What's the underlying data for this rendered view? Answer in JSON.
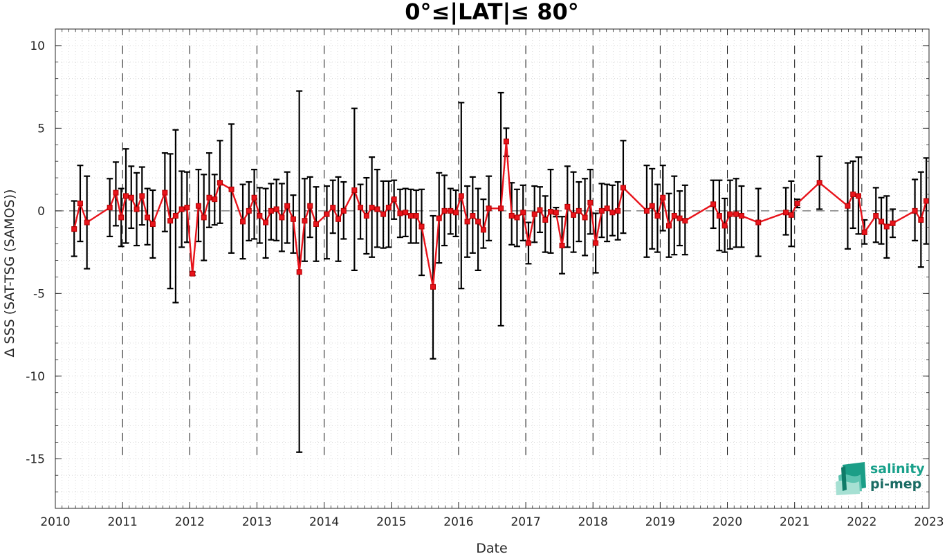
{
  "chart_data": {
    "type": "line",
    "title": "0°≤|LAT|≤ 80°",
    "xlabel": "Date",
    "ylabel": "Δ SSS (SAT-TSG (SAMOS))",
    "xlim": [
      2010,
      2023
    ],
    "ylim": [
      -18,
      11
    ],
    "x_tick_labels": [
      "2010",
      "2011",
      "2012",
      "2013",
      "2014",
      "2015",
      "2016",
      "2017",
      "2018",
      "2019",
      "2020",
      "2021",
      "2022",
      "2023"
    ],
    "y_tick_labels": [
      "-15",
      "-10",
      "-5",
      "0",
      "5",
      "10"
    ],
    "y_tick_values": [
      -15,
      -10,
      -5,
      0,
      5,
      10
    ],
    "year_dividers": [
      2011,
      2012,
      2013,
      2014,
      2015,
      2016,
      2017,
      2018,
      2019,
      2020,
      2021,
      2022
    ],
    "zero_line": 0,
    "grid": "minor-dotted",
    "colors": {
      "series": "#e8131b",
      "errorbar": "#000000",
      "logo": "#18a08a"
    },
    "series": [
      {
        "marker": "square",
        "x": [
          2010.28,
          2010.37,
          2010.47,
          2010.81,
          2010.9,
          2010.98,
          2011.05,
          2011.13,
          2011.21,
          2011.29,
          2011.37,
          2011.45,
          2011.63,
          2011.71,
          2011.79,
          2011.88,
          2011.96,
          2012.04,
          2012.13,
          2012.21,
          2012.29,
          2012.37,
          2012.45,
          2012.62,
          2012.79,
          2012.88,
          2012.96,
          2013.04,
          2013.13,
          2013.21,
          2013.29,
          2013.37,
          2013.45,
          2013.54,
          2013.63,
          2013.71,
          2013.79,
          2013.88,
          2014.04,
          2014.13,
          2014.21,
          2014.29,
          2014.45,
          2014.54,
          2014.63,
          2014.71,
          2014.79,
          2014.88,
          2014.96,
          2015.04,
          2015.13,
          2015.21,
          2015.29,
          2015.37,
          2015.45,
          2015.62,
          2015.71,
          2015.79,
          2015.88,
          2015.96,
          2016.04,
          2016.13,
          2016.21,
          2016.29,
          2016.37,
          2016.45,
          2016.63,
          2016.71,
          2016.79,
          2016.87,
          2016.96,
          2017.04,
          2017.13,
          2017.21,
          2017.29,
          2017.37,
          2017.45,
          2017.54,
          2017.62,
          2017.71,
          2017.79,
          2017.88,
          2017.96,
          2018.04,
          2018.13,
          2018.21,
          2018.29,
          2018.37,
          2018.45,
          2018.8,
          2018.88,
          2018.96,
          2019.04,
          2019.13,
          2019.21,
          2019.29,
          2019.37,
          2019.79,
          2019.88,
          2019.96,
          2020.04,
          2020.13,
          2020.21,
          2020.46,
          2020.87,
          2020.95,
          2021.04,
          2021.37,
          2021.79,
          2021.87,
          2021.95,
          2022.04,
          2022.21,
          2022.29,
          2022.37,
          2022.46,
          2022.79,
          2022.88,
          2022.96
        ],
        "y": [
          -1.1,
          0.45,
          -0.7,
          0.2,
          1.1,
          -0.4,
          0.9,
          0.8,
          0.1,
          0.9,
          -0.4,
          -0.8,
          1.1,
          -0.6,
          -0.3,
          0.1,
          0.2,
          -3.8,
          0.3,
          -0.4,
          0.8,
          0.7,
          1.7,
          1.3,
          -0.65,
          0.0,
          0.8,
          -0.3,
          -0.7,
          0.0,
          0.1,
          -0.4,
          0.3,
          -0.5,
          -3.7,
          -0.6,
          0.3,
          -0.8,
          -0.2,
          0.2,
          -0.5,
          0.0,
          1.25,
          0.2,
          -0.3,
          0.2,
          0.1,
          -0.2,
          0.2,
          0.7,
          -0.15,
          -0.1,
          -0.3,
          -0.3,
          -0.95,
          -4.6,
          -0.45,
          0.0,
          0.0,
          -0.1,
          0.9,
          -0.65,
          -0.3,
          -0.65,
          -1.15,
          0.15,
          0.15,
          4.2,
          -0.3,
          -0.4,
          -0.1,
          -1.95,
          -0.2,
          0.05,
          -0.55,
          -0.05,
          -0.1,
          -2.1,
          0.25,
          -0.25,
          0.0,
          -0.4,
          0.5,
          -1.95,
          0.0,
          0.15,
          -0.1,
          0.0,
          1.4,
          0.0,
          0.3,
          -0.3,
          0.8,
          -0.9,
          -0.3,
          -0.45,
          -0.6,
          0.4,
          -0.3,
          -0.9,
          -0.2,
          -0.2,
          -0.3,
          -0.7,
          -0.1,
          -0.25,
          0.45,
          1.7,
          0.3,
          1.0,
          0.9,
          -1.3,
          -0.3,
          -0.65,
          -0.95,
          -0.75,
          0.0,
          -0.55,
          0.6
        ],
        "err_low": [
          -2.75,
          -1.85,
          -3.5,
          -1.55,
          -0.9,
          -2.15,
          -1.95,
          -1.05,
          -2.1,
          -0.85,
          -2.05,
          -2.85,
          -1.25,
          -4.7,
          -5.55,
          -2.2,
          -1.9,
          -3.9,
          -1.85,
          -3.0,
          -1.0,
          -0.85,
          -0.75,
          -2.55,
          -2.9,
          -1.8,
          -1.7,
          -1.95,
          -2.85,
          -1.75,
          -1.8,
          -2.45,
          -1.95,
          -2.55,
          -14.6,
          -3.05,
          -1.6,
          -3.05,
          -2.9,
          -1.35,
          -3.05,
          -1.7,
          -3.6,
          -1.7,
          -2.6,
          -2.8,
          -2.2,
          -2.25,
          -2.2,
          -0.5,
          -1.6,
          -1.55,
          -1.95,
          -1.95,
          -3.9,
          -8.95,
          -3.15,
          -2.1,
          -1.4,
          -1.55,
          -4.7,
          -2.8,
          -2.55,
          -3.6,
          -2.25,
          -1.8,
          -6.95,
          3.3,
          -2.05,
          -2.15,
          -1.8,
          -3.2,
          -1.9,
          -1.3,
          -2.5,
          -2.55,
          -0.35,
          -3.8,
          -2.2,
          -2.5,
          -1.85,
          -2.7,
          -1.4,
          -3.75,
          -1.6,
          -1.85,
          -1.5,
          -1.75,
          -1.35,
          -2.8,
          -2.3,
          -2.5,
          -1.2,
          -2.8,
          -2.65,
          -2.1,
          -2.65,
          -1.05,
          -2.4,
          -2.5,
          -2.3,
          -2.2,
          -2.2,
          -2.75,
          -1.45,
          -2.15,
          0.2,
          0.1,
          -2.3,
          -1.05,
          -1.4,
          -2.0,
          -1.9,
          -2.0,
          -2.85,
          -1.6,
          -1.8,
          -3.4,
          -2.0
        ],
        "err_high": [
          0.6,
          2.75,
          2.1,
          1.95,
          2.95,
          1.35,
          3.75,
          2.7,
          2.3,
          2.65,
          1.35,
          1.25,
          3.5,
          3.45,
          4.9,
          2.4,
          2.35,
          -3.7,
          2.5,
          2.2,
          3.5,
          2.2,
          4.25,
          5.25,
          1.6,
          1.75,
          2.5,
          1.4,
          1.35,
          1.65,
          1.9,
          1.65,
          2.35,
          0.95,
          7.25,
          1.95,
          2.05,
          1.45,
          1.5,
          1.85,
          2.05,
          1.75,
          6.2,
          1.6,
          2.0,
          3.25,
          2.5,
          1.8,
          1.8,
          1.85,
          1.3,
          1.35,
          1.3,
          1.25,
          1.3,
          -0.3,
          2.3,
          2.15,
          1.35,
          1.25,
          6.55,
          1.5,
          2.05,
          1.35,
          0.7,
          2.1,
          7.15,
          5.0,
          1.7,
          1.3,
          1.55,
          -0.7,
          1.5,
          1.45,
          0.9,
          2.5,
          0.2,
          -0.35,
          2.7,
          2.35,
          1.75,
          1.95,
          2.5,
          -0.15,
          1.65,
          1.6,
          1.55,
          1.75,
          4.25,
          2.75,
          2.55,
          1.6,
          2.75,
          1.05,
          2.1,
          1.2,
          1.55,
          1.85,
          1.85,
          0.75,
          1.85,
          1.95,
          1.5,
          1.35,
          1.4,
          1.8,
          0.7,
          3.3,
          2.9,
          3.0,
          3.25,
          -0.55,
          1.4,
          0.8,
          0.9,
          0.1,
          1.9,
          2.35,
          3.2
        ]
      }
    ]
  },
  "logo": {
    "line1": "salinity",
    "line2": "pi-mep"
  }
}
